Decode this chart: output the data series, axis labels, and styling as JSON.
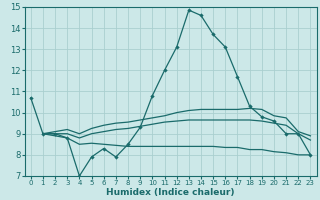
{
  "title": "",
  "xlabel": "Humidex (Indice chaleur)",
  "ylabel": "",
  "bg_color": "#cce8e8",
  "grid_color": "#aacfcf",
  "line_color": "#1a6b6b",
  "xlim": [
    -0.5,
    23.5
  ],
  "ylim": [
    7,
    15
  ],
  "xticks": [
    0,
    1,
    2,
    3,
    4,
    5,
    6,
    7,
    8,
    9,
    10,
    11,
    12,
    13,
    14,
    15,
    16,
    17,
    18,
    19,
    20,
    21,
    22,
    23
  ],
  "yticks": [
    7,
    8,
    9,
    10,
    11,
    12,
    13,
    14,
    15
  ],
  "series": [
    {
      "x": [
        0,
        1,
        2,
        3,
        4,
        5,
        6,
        7,
        8,
        9,
        10,
        11,
        12,
        13,
        14,
        15,
        16,
        17,
        18,
        19,
        20,
        21,
        22,
        23
      ],
      "y": [
        10.7,
        9.0,
        9.0,
        8.8,
        7.0,
        7.9,
        8.3,
        7.9,
        8.5,
        9.3,
        10.8,
        12.0,
        13.1,
        14.85,
        14.6,
        13.7,
        13.1,
        11.7,
        10.3,
        9.8,
        9.6,
        9.0,
        9.0,
        8.0
      ],
      "marker": true
    },
    {
      "x": [
        1,
        2,
        3,
        4,
        5,
        6,
        7,
        8,
        9,
        10,
        11,
        12,
        13,
        14,
        15,
        16,
        17,
        18,
        19,
        20,
        21,
        22,
        23
      ],
      "y": [
        9.0,
        9.1,
        9.2,
        9.0,
        9.25,
        9.4,
        9.5,
        9.55,
        9.65,
        9.75,
        9.85,
        10.0,
        10.1,
        10.15,
        10.15,
        10.15,
        10.15,
        10.2,
        10.15,
        9.85,
        9.75,
        9.1,
        8.9
      ],
      "marker": false
    },
    {
      "x": [
        1,
        2,
        3,
        4,
        5,
        6,
        7,
        8,
        9,
        10,
        11,
        12,
        13,
        14,
        15,
        16,
        17,
        18,
        19,
        20,
        21,
        22,
        23
      ],
      "y": [
        9.0,
        9.0,
        9.0,
        8.8,
        9.0,
        9.1,
        9.2,
        9.25,
        9.35,
        9.45,
        9.55,
        9.6,
        9.65,
        9.65,
        9.65,
        9.65,
        9.65,
        9.65,
        9.6,
        9.5,
        9.4,
        9.0,
        8.7
      ],
      "marker": false
    },
    {
      "x": [
        1,
        2,
        3,
        4,
        5,
        6,
        7,
        8,
        9,
        10,
        11,
        12,
        13,
        14,
        15,
        16,
        17,
        18,
        19,
        20,
        21,
        22,
        23
      ],
      "y": [
        9.0,
        8.9,
        8.8,
        8.5,
        8.55,
        8.5,
        8.45,
        8.4,
        8.4,
        8.4,
        8.4,
        8.4,
        8.4,
        8.4,
        8.4,
        8.35,
        8.35,
        8.25,
        8.25,
        8.15,
        8.1,
        8.0,
        8.0
      ],
      "marker": false
    }
  ]
}
